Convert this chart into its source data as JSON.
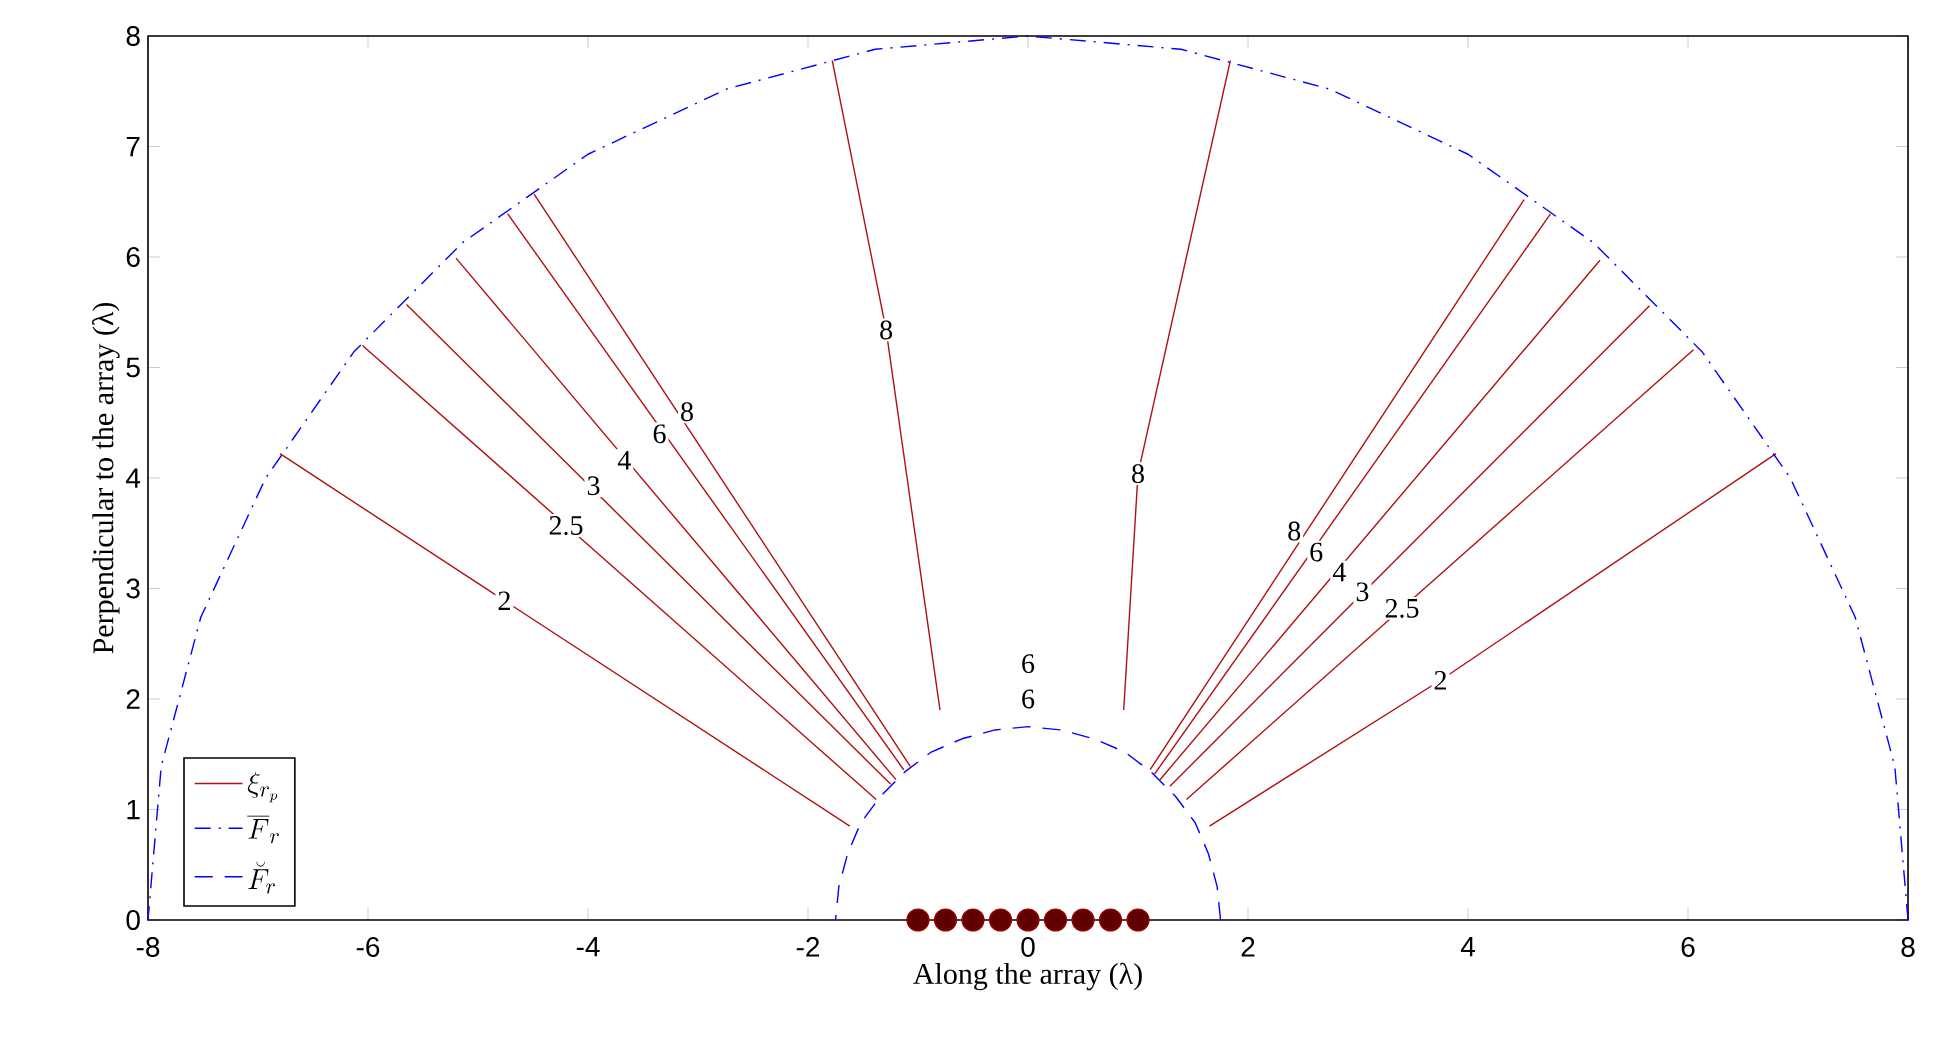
{
  "chart_data": {
    "type": "line",
    "xlabel": "Along the array (λ)",
    "ylabel": "Perpendicular to the array (λ)",
    "xlim": [
      -8,
      8
    ],
    "ylim": [
      0,
      8
    ],
    "xticks": [
      -8,
      -6,
      -4,
      -2,
      0,
      2,
      4,
      6,
      8
    ],
    "yticks": [
      0,
      1,
      2,
      3,
      4,
      5,
      6,
      7,
      8
    ],
    "grid": false,
    "legend": "bottom left",
    "series": [
      {
        "name": "\\xi_{r_p}",
        "color": "#b01010",
        "x": [
          -1.62,
          -4.76,
          -6.8
        ],
        "values": [
          0.85,
          2.89,
          4.22
        ]
      },
      {
        "color": "#b01010",
        "x": [
          -1.38,
          -6.05
        ],
        "values": [
          1.09,
          5.2
        ]
      },
      {
        "color": "#b01010",
        "x": [
          -1.25,
          -5.65
        ],
        "values": [
          1.23,
          5.57
        ]
      },
      {
        "color": "#b01010",
        "x": [
          -1.2,
          -5.2
        ],
        "values": [
          1.27,
          5.99
        ]
      },
      {
        "color": "#b01010",
        "x": [
          -1.13,
          -4.73
        ],
        "values": [
          1.36,
          6.39
        ]
      },
      {
        "color": "#b01010",
        "x": [
          -1.07,
          -4.49
        ],
        "values": [
          1.39,
          6.57
        ]
      },
      {
        "color": "#b01010",
        "x": [
          -0.8,
          -1.29,
          -1.78
        ],
        "values": [
          1.9,
          5.34,
          7.78
        ]
      },
      {
        "color": "#b01010",
        "x": [
          0.87,
          1.0,
          1.84
        ],
        "values": [
          1.9,
          4.04,
          7.78
        ]
      },
      {
        "color": "#b01010",
        "x": [
          1.11,
          4.51
        ],
        "values": [
          1.36,
          6.52
        ]
      },
      {
        "color": "#b01010",
        "x": [
          1.15,
          4.75
        ],
        "values": [
          1.32,
          6.39
        ]
      },
      {
        "color": "#b01010",
        "x": [
          1.2,
          5.2
        ],
        "values": [
          1.27,
          5.97
        ]
      },
      {
        "color": "#b01010",
        "x": [
          1.29,
          5.65
        ],
        "values": [
          1.21,
          5.56
        ]
      },
      {
        "color": "#b01010",
        "x": [
          1.44,
          6.05
        ],
        "values": [
          1.09,
          5.16
        ]
      },
      {
        "color": "#b01010",
        "x": [
          1.65,
          3.75,
          6.8
        ],
        "values": [
          0.85,
          2.17,
          4.22
        ]
      },
      {
        "name": "\\overline{F}_r",
        "color": "#0000ff",
        "line_style": "dashdot",
        "x": [
          8,
          7.88,
          7.52,
          6.93,
          6.13,
          5.14,
          4,
          2.74,
          1.39,
          0,
          -1.39,
          -2.74,
          -4,
          -5.14,
          -6.13,
          -6.93,
          -7.52,
          -7.88,
          -8
        ],
        "values": [
          0,
          1.39,
          2.74,
          4,
          5.14,
          6.13,
          6.93,
          7.52,
          7.88,
          8,
          7.88,
          7.52,
          6.93,
          6.13,
          5.14,
          4,
          2.74,
          1.39,
          0
        ]
      },
      {
        "name": "\\breve{F}_r",
        "color": "#0000ff",
        "line_style": "dashed",
        "x": [
          1.75,
          1.72,
          1.64,
          1.52,
          1.34,
          1.12,
          0.88,
          0.6,
          0.3,
          0,
          -0.3,
          -0.6,
          -0.88,
          -1.12,
          -1.34,
          -1.52,
          -1.64,
          -1.72,
          -1.75
        ],
        "values": [
          0,
          0.3,
          0.6,
          0.88,
          1.12,
          1.34,
          1.52,
          1.64,
          1.72,
          1.75,
          1.72,
          1.64,
          1.52,
          1.34,
          1.12,
          0.88,
          0.6,
          0.3,
          0
        ]
      },
      {
        "type": "scatter",
        "marker": "circle",
        "color": "#600000",
        "x": [
          -1,
          -0.75,
          -0.5,
          -0.25,
          0,
          0.25,
          0.5,
          0.75,
          1
        ],
        "values": [
          0,
          0,
          0,
          0,
          0,
          0,
          0,
          0,
          0
        ]
      }
    ],
    "annotations": [
      {
        "text": "2",
        "x": -4.76,
        "y": 2.89
      },
      {
        "text": "2.5",
        "x": -4.2,
        "y": 3.57
      },
      {
        "text": "3",
        "x": -3.95,
        "y": 3.93
      },
      {
        "text": "4",
        "x": -3.67,
        "y": 4.16
      },
      {
        "text": "6",
        "x": -3.35,
        "y": 4.4
      },
      {
        "text": "8",
        "x": -3.1,
        "y": 4.6
      },
      {
        "text": "8",
        "x": -1.29,
        "y": 5.34
      },
      {
        "text": "8",
        "x": 1.0,
        "y": 4.04
      },
      "6",
      "6",
      {
        "text": "8",
        "x": 2.42,
        "y": 3.52
      },
      {
        "text": "6",
        "x": 2.62,
        "y": 3.33
      },
      {
        "text": "4",
        "x": 2.83,
        "y": 3.15
      },
      {
        "text": "3",
        "x": 3.04,
        "y": 2.97
      },
      {
        "text": "2.5",
        "x": 3.4,
        "y": 2.82
      },
      {
        "text": "2",
        "x": 3.75,
        "y": 2.17
      }
    ]
  }
}
